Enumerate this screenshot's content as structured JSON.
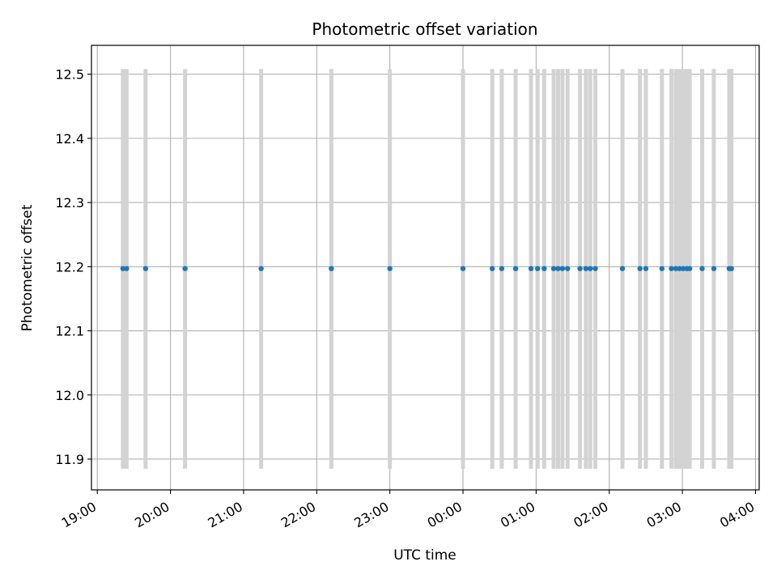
{
  "chart_data": {
    "type": "scatter",
    "title": "Photometric offset variation",
    "xlabel": "UTC time",
    "ylabel": "Photometric offset",
    "x_unit": "hours",
    "xlim": [
      18.92,
      28.05
    ],
    "ylim": [
      11.852,
      12.545
    ],
    "x_ticks": [
      {
        "value": 19,
        "label": "19:00"
      },
      {
        "value": 20,
        "label": "20:00"
      },
      {
        "value": 21,
        "label": "21:00"
      },
      {
        "value": 22,
        "label": "22:00"
      },
      {
        "value": 23,
        "label": "23:00"
      },
      {
        "value": 24,
        "label": "00:00"
      },
      {
        "value": 25,
        "label": "01:00"
      },
      {
        "value": 26,
        "label": "02:00"
      },
      {
        "value": 27,
        "label": "03:00"
      },
      {
        "value": 28,
        "label": "04:00"
      }
    ],
    "y_ticks": [
      {
        "value": 11.9,
        "label": "11.9"
      },
      {
        "value": 12.0,
        "label": "12.0"
      },
      {
        "value": 12.1,
        "label": "12.1"
      },
      {
        "value": 12.2,
        "label": "12.2"
      },
      {
        "value": 12.3,
        "label": "12.3"
      },
      {
        "value": 12.4,
        "label": "12.4"
      },
      {
        "value": 12.5,
        "label": "12.5"
      }
    ],
    "grid": true,
    "point_color": "#1f77b4",
    "errorbar_color": "#d3d3d3",
    "errorbar_range": [
      11.885,
      12.508
    ],
    "y_value": 12.197,
    "x": [
      19.35,
      19.4,
      19.66,
      20.2,
      21.24,
      22.2,
      23.0,
      24.0,
      24.4,
      24.53,
      24.72,
      24.93,
      25.02,
      25.11,
      25.24,
      25.3,
      25.36,
      25.43,
      25.6,
      25.68,
      25.74,
      25.81,
      26.18,
      26.42,
      26.5,
      26.72,
      26.85,
      26.91,
      26.96,
      27.01,
      27.06,
      27.1,
      27.27,
      27.43,
      27.64,
      27.67
    ]
  }
}
